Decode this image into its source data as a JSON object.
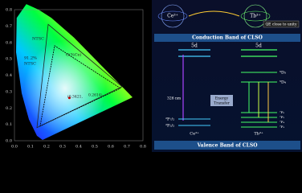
{
  "cie": {
    "x_ticks": [
      "0.0",
      "0.1",
      "0.2",
      "0.3",
      "0.4",
      "0.5",
      "0.6",
      "0.7",
      "0.8"
    ],
    "y_ticks": [
      "0.0",
      "0.1",
      "0.2",
      "0.3",
      "0.4",
      "0.5",
      "0.6",
      "0.7",
      "0.8"
    ],
    "ntsc": "NTSC",
    "gamut_value": "91.2%",
    "gamut_ref": "NTSC",
    "host": "G(%Ce)",
    "coord_x": "(0.3421,",
    "coord_y": "0.2614)"
  },
  "energy": {
    "ion_a": "Ce³⁺",
    "ion_b": "Tb³⁺",
    "qe": "QE close to unity",
    "conduction": "Conduction Band of CLSO",
    "level_5d_a": "5d",
    "level_5d_b": "5d",
    "excitation": "326 nm",
    "transfer": [
      "Energy",
      "Transfer"
    ],
    "level_5d3": "⁵D₃",
    "level_5d4": "⁵D₄",
    "level_2f72": "²F₇/₂",
    "level_2f52": "²F₅/₂",
    "level_7f": [
      "⁷F₆",
      "⁷F₅",
      "⁷F₄",
      "⁷F₃"
    ],
    "ion_a_bottom": "Ce³⁺",
    "ion_b_bottom": "Tb³⁺",
    "valence": "Valence Band of CLSO"
  }
}
